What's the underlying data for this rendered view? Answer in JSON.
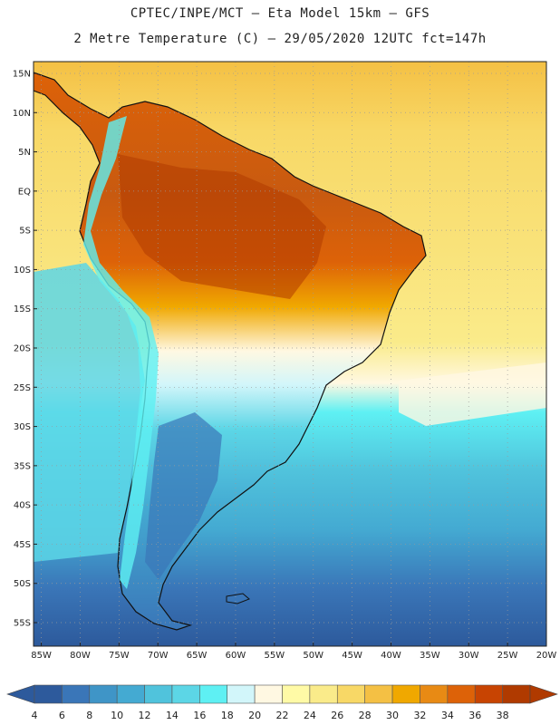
{
  "header": {
    "line1": "CPTEC/INPE/MCT –  Eta Model 15km – GFS",
    "line2": "2 Metre Temperature (C) – 29/05/2020 12UTC fct=147h"
  },
  "axes": {
    "lat_labels": [
      "15N",
      "10N",
      "5N",
      "EQ",
      "5S",
      "10S",
      "15S",
      "20S",
      "25S",
      "30S",
      "35S",
      "40S",
      "45S",
      "50S",
      "55S"
    ],
    "lon_labels": [
      "85W",
      "80W",
      "75W",
      "70W",
      "65W",
      "60W",
      "55W",
      "50W",
      "45W",
      "40W",
      "35W",
      "30W",
      "25W",
      "20W"
    ],
    "lat_values": [
      15,
      10,
      5,
      0,
      -5,
      -10,
      -15,
      -20,
      -25,
      -30,
      -35,
      -40,
      -45,
      -50,
      -55
    ],
    "lon_values": [
      -85,
      -80,
      -75,
      -70,
      -65,
      -60,
      -55,
      -50,
      -45,
      -40,
      -35,
      -30,
      -25,
      -20
    ],
    "lat_range": [
      -58,
      16.5
    ],
    "lon_range": [
      -86,
      -20
    ]
  },
  "colorbar": {
    "labels": [
      "4",
      "6",
      "8",
      "10",
      "12",
      "14",
      "16",
      "18",
      "20",
      "22",
      "24",
      "26",
      "28",
      "30",
      "32",
      "34",
      "36",
      "38"
    ],
    "colors": [
      "#2d5a9c",
      "#3a76b8",
      "#3f95c7",
      "#44aad2",
      "#50c3dc",
      "#5cd6e6",
      "#5ef0f3",
      "#d2f6fa",
      "#fff8e2",
      "#fffaa6",
      "#faeb8a",
      "#f8d866",
      "#f4c044",
      "#f0a800",
      "#e88a14",
      "#dd6208",
      "#c84402",
      "#b03a00"
    ]
  },
  "colors": {
    "ocean_cool": "#3a76b8",
    "ocean_mid": "#50c3dc",
    "ocean_warm": "#f8d866",
    "land_hot": "#c85a10",
    "andes": "#5ef0f3",
    "patagonia": "#3f95c7",
    "grid": "#9a9a9a",
    "coast": "#111111"
  }
}
